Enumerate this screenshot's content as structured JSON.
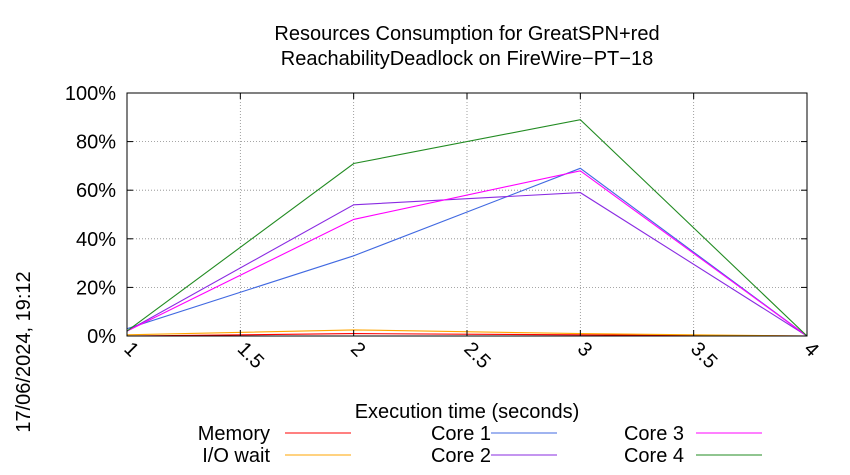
{
  "chart_data": {
    "type": "line",
    "title": "Resources Consumption for GreatSPN+red",
    "subtitle": "ReachabilityDeadlock on FireWire−PT−18",
    "xlabel": "Execution time (seconds)",
    "ylabel": "",
    "side_label": "17/06/2024, 19:12",
    "xlim": [
      1,
      4
    ],
    "ylim": [
      0,
      100
    ],
    "x_ticks": [
      1,
      1.5,
      2,
      2.5,
      3,
      3.5,
      4
    ],
    "x_tick_labels": [
      "1",
      "1.5",
      "2",
      "2.5",
      "3",
      "3.5",
      "4"
    ],
    "y_ticks": [
      0,
      20,
      40,
      60,
      80,
      100
    ],
    "y_tick_labels": [
      "0%",
      "20%",
      "40%",
      "60%",
      "80%",
      "100%"
    ],
    "grid": true,
    "legend_position": "bottom",
    "series": [
      {
        "name": "Memory",
        "color": "#ff0000",
        "x": [
          1,
          2,
          3,
          4
        ],
        "y": [
          0,
          1,
          0.5,
          0
        ]
      },
      {
        "name": "I/O wait",
        "color": "#ffa500",
        "x": [
          1,
          2,
          3,
          4
        ],
        "y": [
          0.5,
          2.5,
          1,
          0
        ]
      },
      {
        "name": "Core 1",
        "color": "#4169e1",
        "x": [
          1,
          2,
          3,
          4
        ],
        "y": [
          3,
          33,
          69,
          0
        ]
      },
      {
        "name": "Core 2",
        "color": "#8a2be2",
        "x": [
          1,
          2,
          3,
          4
        ],
        "y": [
          2,
          54,
          59,
          0
        ]
      },
      {
        "name": "Core 3",
        "color": "#ff00ff",
        "x": [
          1,
          2,
          3,
          4
        ],
        "y": [
          2,
          48,
          68,
          0
        ]
      },
      {
        "name": "Core 4",
        "color": "#228b22",
        "x": [
          1,
          2,
          3,
          4
        ],
        "y": [
          2,
          71,
          89,
          0
        ]
      }
    ]
  }
}
